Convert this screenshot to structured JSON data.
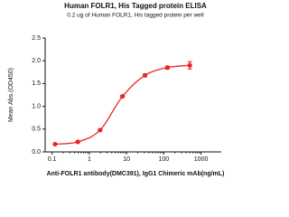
{
  "chart_data": {
    "type": "line",
    "title": "Human FOLR1, His Tagged protein ELISA",
    "subtitle": "0.2 ug of Human FOLR1, His tagged protein per well",
    "x_label": "Anti-FOLR1 antibody(DMC391), IgG1 Chimeric mAb(ng/mL)",
    "y_label": "Mean Abs.(OD450)",
    "x": [
      0.12,
      0.49,
      1.95,
      7.8,
      31.25,
      125,
      500
    ],
    "series": [
      {
        "color": "#e8272a",
        "values": [
          0.17,
          0.22,
          0.48,
          1.22,
          1.68,
          1.85,
          1.9
        ],
        "errors": [
          0.01,
          0.01,
          0.02,
          0.02,
          0.03,
          0.03,
          0.08
        ]
      }
    ],
    "x_scale": "log",
    "xlim": [
      0.065,
      3500
    ],
    "xticks": [
      0.1,
      1,
      10,
      100,
      1000
    ],
    "ylim": [
      0,
      2.5
    ],
    "yticks": [
      {
        "value": 0,
        "label": "0.0"
      },
      0.5,
      {
        "value": 1,
        "label": "1.0"
      },
      1.5,
      {
        "value": 2,
        "label": "2.0"
      },
      2.5
    ]
  }
}
